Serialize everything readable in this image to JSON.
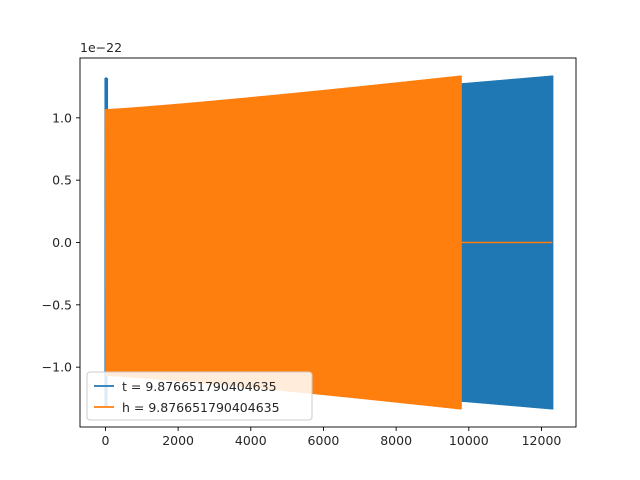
{
  "chart_data": {
    "type": "line",
    "title": "",
    "xlabel": "",
    "ylabel": "",
    "y_offset_text": "1e−22",
    "xlim": [
      -700,
      12950
    ],
    "ylim": [
      -1.48,
      1.48
    ],
    "x_ticks": [
      0,
      2000,
      4000,
      6000,
      8000,
      10000,
      12000
    ],
    "x_tick_labels": [
      "0",
      "2000",
      "4000",
      "6000",
      "8000",
      "10000",
      "12000"
    ],
    "y_ticks": [
      -1.0,
      -0.5,
      0.0,
      0.5,
      1.0
    ],
    "y_tick_labels": [
      "−1.0",
      "−0.5",
      "0.0",
      "0.5",
      "1.0"
    ],
    "grid": false,
    "legend_position": "lower-left",
    "series": [
      {
        "name": "t = 9.876651790404635",
        "color": "#1f77b4",
        "x_start": 0,
        "x_end": 12300,
        "amp_start": 1.32,
        "amp_min": 1.07,
        "amp_end": 1.34,
        "oscillating": true
      },
      {
        "name": "h = 9.876651790404635",
        "color": "#ff7f0e",
        "x_start": 0,
        "x_end": 9780,
        "amp_start": 1.07,
        "amp_end": 1.34,
        "oscillating": true,
        "flat_after": {
          "x_from": 9780,
          "x_to": 12300,
          "value": 0.0
        }
      }
    ]
  }
}
